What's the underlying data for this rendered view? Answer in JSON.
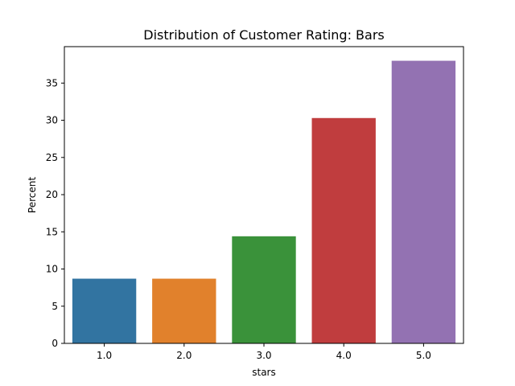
{
  "chart_data": {
    "type": "bar",
    "title": "Distribution of Customer Rating: Bars",
    "xlabel": "stars",
    "ylabel": "Percent",
    "categories": [
      "1.0",
      "2.0",
      "3.0",
      "4.0",
      "5.0"
    ],
    "values": [
      8.7,
      8.7,
      14.4,
      30.3,
      38.0
    ],
    "colors": [
      "#3274a1",
      "#e1812c",
      "#3a923a",
      "#c03d3e",
      "#9372b2"
    ],
    "ylim": [
      0,
      39.9
    ],
    "yticks": [
      0,
      5,
      10,
      15,
      20,
      25,
      30,
      35
    ],
    "grid": false,
    "legend": "none"
  }
}
